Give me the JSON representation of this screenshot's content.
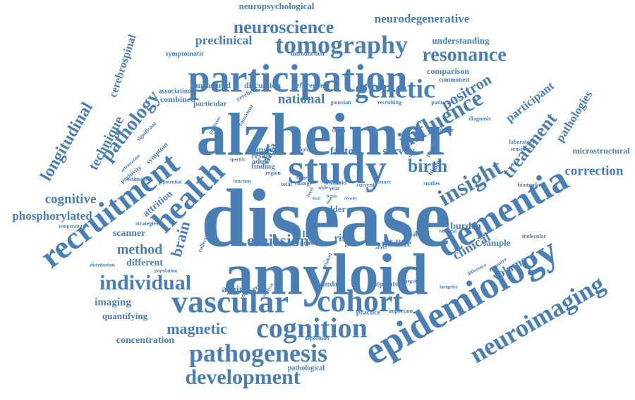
{
  "cloud": {
    "color": "#4a7fb5",
    "words": [
      "disease",
      "alzheimer",
      "amyloid",
      "participation",
      "study",
      "epidemiology",
      "dementia",
      "neuroimaging",
      "recruitment",
      "cohort",
      "vascular",
      "health",
      "tomography",
      "genetic",
      "cognition",
      "neuroscience",
      "pathogenesis",
      "development",
      "resonance",
      "individual",
      "influence",
      "insight",
      "positron",
      "longitudinal",
      "birth",
      "pathology",
      "treatment",
      "emission",
      "magnetic",
      "brain",
      "method",
      "technique",
      "cognitive",
      "phosphorylated",
      "correction",
      "neurodegenerative",
      "participant",
      "pathologies",
      "neuropsychological",
      "cerebrospinal",
      "clinical",
      "national",
      "preclinical",
      "volume",
      "factor",
      "survey",
      "data",
      "life",
      "risk",
      "burden",
      "midlife",
      "concentration",
      "imaging",
      "different",
      "scanner",
      "attrition",
      "quantifying",
      "sample",
      "older",
      "ageing",
      "understanding",
      "comparison",
      "microstructural",
      "measured",
      "discussion",
      "reference",
      "particular",
      "combined",
      "association",
      "symptomatic",
      "introduction",
      "commonest",
      "gaussian",
      "recruiting",
      "pathway",
      "evidence",
      "diagnosis",
      "laboratory",
      "sensitive",
      "biomarker",
      "transfer",
      "result",
      "finding",
      "adult",
      "region",
      "current",
      "total",
      "change",
      "lower",
      "rate",
      "fluid",
      "year",
      "mixture",
      "studies",
      "smaller",
      "bimodal",
      "molecular",
      "strategies",
      "temperature",
      "distribution",
      "population",
      "collection",
      "delivery",
      "analysis",
      "standard",
      "cutpoints",
      "practice",
      "important",
      "negative",
      "integrity",
      "measure",
      "difference",
      "deposition",
      "pathological",
      "courier",
      "marker",
      "partial",
      "affect",
      "window",
      "related",
      "potential",
      "estimate",
      "positivity",
      "symptom",
      "attenuation",
      "significant",
      "predictor",
      "consistent",
      "cerebral",
      "design",
      "atrophy",
      "function",
      "specific",
      "positive",
      "higher",
      "level",
      "matter",
      "target",
      "wide",
      "basis",
      "track",
      "time",
      "dual",
      "density",
      "work"
    ]
  }
}
